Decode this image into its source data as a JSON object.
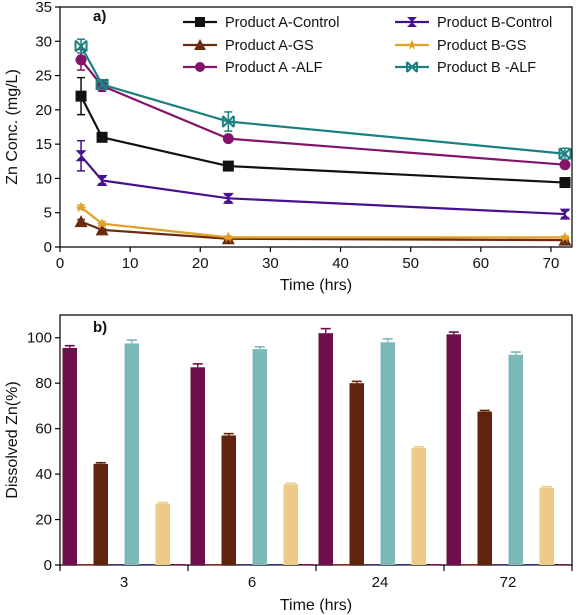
{
  "chart_data": [
    {
      "type": "line",
      "panel_label": "a)",
      "xlabel": "Time (hrs)",
      "ylabel": "Zn Conc. (mg/L)",
      "xlim": [
        0,
        73
      ],
      "ylim": [
        0,
        35
      ],
      "xticks": [
        0,
        10,
        20,
        30,
        40,
        50,
        60,
        70
      ],
      "yticks": [
        0,
        5,
        10,
        15,
        20,
        25,
        30,
        35
      ],
      "x": [
        3,
        6,
        24,
        72
      ],
      "legend_position": "top-right",
      "series": [
        {
          "name": "Product A-Control",
          "color": "#111111",
          "marker": "square",
          "values": [
            22,
            16,
            11.8,
            9.4
          ],
          "errors": [
            2.7,
            0.5,
            0.4,
            0.5
          ]
        },
        {
          "name": "Product A-GS",
          "color": "#6b2b12",
          "marker": "triangle",
          "values": [
            3.7,
            2.5,
            1.2,
            1.0
          ],
          "errors": [
            0.3,
            0.2,
            0.1,
            0.1
          ]
        },
        {
          "name": "Product A -ALF",
          "color": "#84136b",
          "marker": "circle",
          "values": [
            27.3,
            23.5,
            15.8,
            12
          ],
          "errors": [
            1.5,
            0.8,
            0.4,
            0.4
          ]
        },
        {
          "name": "Product B-Control",
          "color": "#47108c",
          "marker": "hourglass",
          "values": [
            13.3,
            9.7,
            7.1,
            4.8
          ],
          "errors": [
            2.2,
            0.5,
            0.5,
            0.5
          ]
        },
        {
          "name": "Product B-GS",
          "color": "#e2a126",
          "marker": "star",
          "values": [
            5.8,
            3.4,
            1.4,
            1.4
          ],
          "errors": [
            0.3,
            0.3,
            0.2,
            0.2
          ]
        },
        {
          "name": "Product B -ALF",
          "color": "#1d8080",
          "marker": "xbar",
          "values": [
            29.3,
            23.7,
            18.3,
            13.6
          ],
          "errors": [
            1.0,
            0.7,
            1.4,
            0.8
          ]
        }
      ]
    },
    {
      "type": "bar",
      "panel_label": "b)",
      "xlabel": "Time (hrs)",
      "ylabel": "Dissolved Zn(%)",
      "ylim": [
        0,
        110
      ],
      "yticks": [
        0,
        20,
        40,
        60,
        80,
        100
      ],
      "categories": [
        "3",
        "6",
        "24",
        "72"
      ],
      "series": [
        {
          "color": "#6e0e4b",
          "values": [
            95.5,
            87,
            102,
            101.5
          ],
          "errors": [
            1,
            1.5,
            2,
            1
          ]
        },
        {
          "color": "#8b2a2a",
          "values": [
            0,
            0,
            0,
            0
          ],
          "errors": [
            0,
            0,
            0,
            0
          ]
        },
        {
          "color": "#61230d",
          "values": [
            44.5,
            57,
            80,
            67.5
          ],
          "errors": [
            0.5,
            0.8,
            0.8,
            0.5
          ]
        },
        {
          "color": "#3d2a75",
          "values": [
            0,
            0,
            0,
            0
          ],
          "errors": [
            0,
            0,
            0,
            0
          ]
        },
        {
          "color": "#7fb8b8",
          "values": [
            97.5,
            95,
            98,
            92.5
          ],
          "errors": [
            1.5,
            1,
            1.5,
            1.2
          ]
        },
        {
          "color": "#2e2e6e",
          "values": [
            0,
            0,
            0,
            0
          ],
          "errors": [
            0,
            0,
            0,
            0
          ]
        },
        {
          "color": "#eccb8a",
          "values": [
            27,
            35.5,
            51.5,
            34
          ],
          "errors": [
            0.5,
            0.5,
            0.5,
            0.5
          ]
        },
        {
          "color": "#6e0e4b",
          "values": [
            0,
            0,
            0,
            0
          ],
          "errors": [
            0,
            0,
            0,
            0
          ]
        }
      ]
    }
  ]
}
